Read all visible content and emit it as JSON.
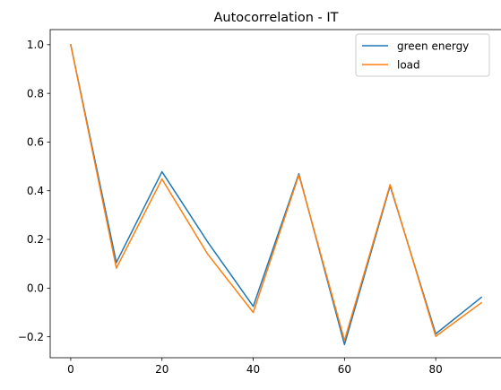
{
  "chart_data": {
    "type": "line",
    "title": "Autocorrelation - IT",
    "xlabel": "",
    "ylabel": "",
    "x": [
      0,
      10,
      20,
      30,
      40,
      50,
      60,
      70,
      80,
      90
    ],
    "series": [
      {
        "name": "green energy",
        "color": "#1f77b4",
        "values": [
          1.0,
          0.105,
          0.478,
          0.19,
          -0.075,
          0.47,
          -0.232,
          0.42,
          -0.188,
          -0.038
        ]
      },
      {
        "name": "load",
        "color": "#ff7f0e",
        "values": [
          1.0,
          0.082,
          0.448,
          0.14,
          -0.1,
          0.465,
          -0.215,
          0.425,
          -0.198,
          -0.06
        ]
      }
    ],
    "xlim": [
      -4.5,
      94.5
    ],
    "ylim": [
      -0.286,
      1.062
    ],
    "xticks": [
      0,
      20,
      40,
      60,
      80
    ],
    "yticks": [
      -0.2,
      0.0,
      0.2,
      0.4,
      0.6,
      0.8,
      1.0
    ],
    "xtick_labels": [
      "0",
      "20",
      "40",
      "60",
      "80"
    ],
    "ytick_labels": [
      "−0.2",
      "0.0",
      "0.2",
      "0.4",
      "0.6",
      "0.8",
      "1.0"
    ],
    "grid": false,
    "legend_position": "top-right"
  }
}
